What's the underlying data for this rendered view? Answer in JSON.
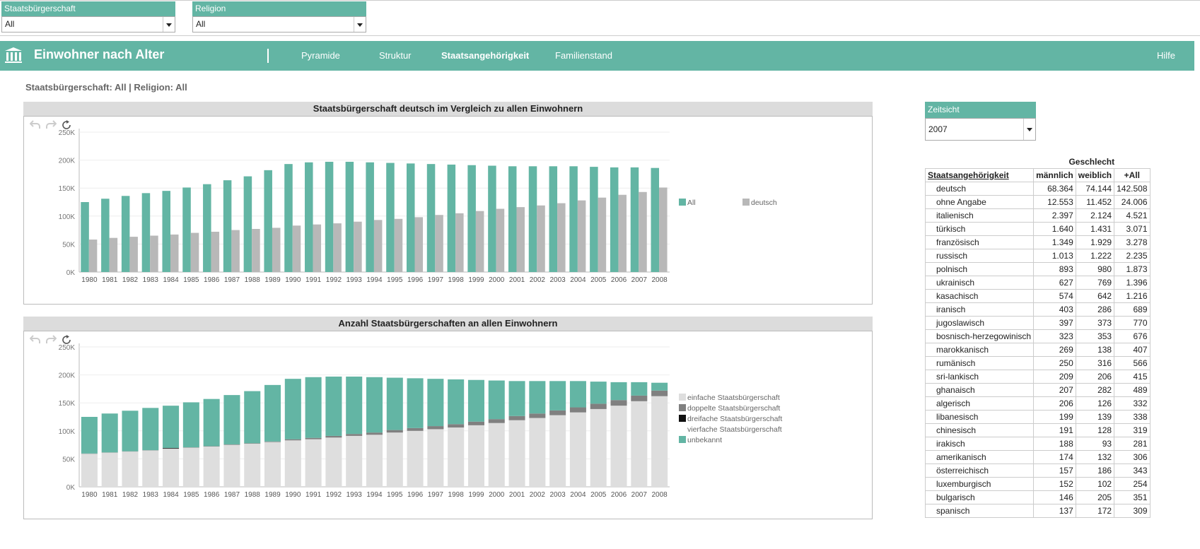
{
  "filters": [
    {
      "label": "Staatsbürgerschaft",
      "value": "All"
    },
    {
      "label": "Religion",
      "value": "All"
    }
  ],
  "nav": {
    "title": "Einwohner nach Alter",
    "items": [
      {
        "label": "Pyramide",
        "active": false
      },
      {
        "label": "Struktur",
        "active": false
      },
      {
        "label": "Staatsangehörigkeit",
        "active": true
      },
      {
        "label": "Familienstand",
        "active": false
      }
    ],
    "help": "Hilfe"
  },
  "subtitle": "Staatsbürgerschaft: All | Religion: All",
  "zeitsicht": {
    "label": "Zeitsicht",
    "value": "2007"
  },
  "colors": {
    "teal": "#63b5a4",
    "gray": "#b8b8b8",
    "light": "#dedede",
    "dark": "#808080",
    "black": "#111111"
  },
  "chart_data": [
    {
      "type": "bar",
      "title": "Staatsbürgerschaft deutsch im Vergleich zu allen Einwohnern",
      "categories": [
        "1980",
        "1981",
        "1982",
        "1983",
        "1984",
        "1985",
        "1986",
        "1987",
        "1988",
        "1989",
        "1990",
        "1991",
        "1992",
        "1993",
        "1994",
        "1995",
        "1996",
        "1997",
        "1998",
        "1999",
        "2000",
        "2001",
        "2002",
        "2003",
        "2004",
        "2005",
        "2006",
        "2007",
        "2008"
      ],
      "series": [
        {
          "name": "All",
          "color": "#63b5a4",
          "values": [
            125000,
            131000,
            136000,
            141000,
            145000,
            151000,
            157000,
            164000,
            171000,
            182000,
            193000,
            196000,
            197000,
            197000,
            196000,
            195000,
            194000,
            193000,
            192000,
            191000,
            190000,
            189000,
            189000,
            189000,
            189000,
            188000,
            187000,
            187000,
            186000
          ]
        },
        {
          "name": "deutsch",
          "color": "#b8b8b8",
          "values": [
            58000,
            61000,
            63000,
            65000,
            67000,
            70000,
            72000,
            75000,
            77000,
            79000,
            83000,
            85000,
            87000,
            90000,
            93000,
            95000,
            98000,
            102000,
            105000,
            109000,
            113000,
            116000,
            119000,
            123000,
            128000,
            133000,
            138000,
            143000,
            151000
          ]
        }
      ],
      "ylim": [
        0,
        250000
      ],
      "yticks": [
        "0K",
        "50K",
        "100K",
        "150K",
        "200K",
        "250K"
      ],
      "legend_position": "right",
      "grid": true
    },
    {
      "type": "bar",
      "stacked": true,
      "title": "Anzahl Staatsbürgerschaften an allen Einwohnern",
      "categories": [
        "1980",
        "1981",
        "1982",
        "1983",
        "1984",
        "1985",
        "1986",
        "1987",
        "1988",
        "1989",
        "1990",
        "1991",
        "1992",
        "1993",
        "1994",
        "1995",
        "1996",
        "1997",
        "1998",
        "1999",
        "2000",
        "2001",
        "2002",
        "2003",
        "2004",
        "2005",
        "2006",
        "2007",
        "2008"
      ],
      "series": [
        {
          "name": "einfache Staatsbürgerschaft",
          "color": "#dedede",
          "values": [
            59000,
            61000,
            63000,
            65000,
            68000,
            70000,
            72000,
            75000,
            77000,
            80000,
            83000,
            85000,
            88000,
            91000,
            93000,
            97000,
            100000,
            103000,
            106000,
            110000,
            114000,
            119000,
            123000,
            128000,
            133000,
            139000,
            145000,
            153000,
            162000
          ]
        },
        {
          "name": "doppelte Staatsbürgerschaft",
          "color": "#808080",
          "values": [
            500,
            500,
            500,
            500,
            500,
            600,
            700,
            800,
            900,
            1000,
            2000,
            2500,
            3000,
            3500,
            4000,
            4500,
            5000,
            5500,
            6000,
            6500,
            7000,
            7500,
            8000,
            8500,
            9000,
            9500,
            10000,
            10000,
            10000
          ]
        },
        {
          "name": "dreifache Staatsbürgerschaft",
          "color": "#111111",
          "values": [
            0,
            0,
            0,
            0,
            1000,
            0,
            0,
            0,
            0,
            0,
            0,
            0,
            0,
            0,
            0,
            0,
            0,
            0,
            0,
            0,
            0,
            0,
            0,
            0,
            0,
            0,
            0,
            0,
            0
          ]
        },
        {
          "name": "vierfache Staatsbürgerschaft",
          "color": "#ffffff",
          "values": [
            0,
            0,
            0,
            0,
            0,
            0,
            0,
            0,
            0,
            0,
            0,
            0,
            0,
            0,
            0,
            0,
            0,
            0,
            0,
            0,
            0,
            0,
            0,
            0,
            0,
            0,
            0,
            0,
            0
          ]
        },
        {
          "name": "unbekannt",
          "color": "#63b5a4",
          "values": [
            65500,
            69500,
            72500,
            75500,
            75500,
            80400,
            84300,
            88200,
            93100,
            101000,
            108000,
            108500,
            106000,
            102500,
            99000,
            93500,
            89000,
            84500,
            80000,
            74500,
            69000,
            62500,
            58000,
            52500,
            47000,
            39500,
            32000,
            24000,
            14000
          ]
        }
      ],
      "ylim": [
        0,
        250000
      ],
      "yticks": [
        "0K",
        "50K",
        "100K",
        "150K",
        "200K",
        "250K"
      ],
      "legend_position": "right",
      "grid": true
    }
  ],
  "table": {
    "group_header": "Geschlecht",
    "columns": [
      "Staatsangehörigkeit",
      "männlich",
      "weiblich",
      "+All"
    ],
    "rows": [
      [
        "deutsch",
        "68.364",
        "74.144",
        "142.508"
      ],
      [
        "ohne Angabe",
        "12.553",
        "11.452",
        "24.006"
      ],
      [
        "italienisch",
        "2.397",
        "2.124",
        "4.521"
      ],
      [
        "türkisch",
        "1.640",
        "1.431",
        "3.071"
      ],
      [
        "französisch",
        "1.349",
        "1.929",
        "3.278"
      ],
      [
        "russisch",
        "1.013",
        "1.222",
        "2.235"
      ],
      [
        "polnisch",
        "893",
        "980",
        "1.873"
      ],
      [
        "ukrainisch",
        "627",
        "769",
        "1.396"
      ],
      [
        "kasachisch",
        "574",
        "642",
        "1.216"
      ],
      [
        "iranisch",
        "403",
        "286",
        "689"
      ],
      [
        "jugoslawisch",
        "397",
        "373",
        "770"
      ],
      [
        "bosnisch-herzegowinisch",
        "323",
        "353",
        "676"
      ],
      [
        "marokkanisch",
        "269",
        "138",
        "407"
      ],
      [
        "rumänisch",
        "250",
        "316",
        "566"
      ],
      [
        "sri-lankisch",
        "209",
        "206",
        "415"
      ],
      [
        "ghanaisch",
        "207",
        "282",
        "489"
      ],
      [
        "algerisch",
        "206",
        "126",
        "332"
      ],
      [
        "libanesisch",
        "199",
        "139",
        "338"
      ],
      [
        "chinesisch",
        "191",
        "128",
        "319"
      ],
      [
        "irakisch",
        "188",
        "93",
        "281"
      ],
      [
        "amerikanisch",
        "174",
        "132",
        "306"
      ],
      [
        "österreichisch",
        "157",
        "186",
        "343"
      ],
      [
        "luxemburgisch",
        "152",
        "102",
        "254"
      ],
      [
        "bulgarisch",
        "146",
        "205",
        "351"
      ],
      [
        "spanisch",
        "137",
        "172",
        "309"
      ]
    ]
  }
}
